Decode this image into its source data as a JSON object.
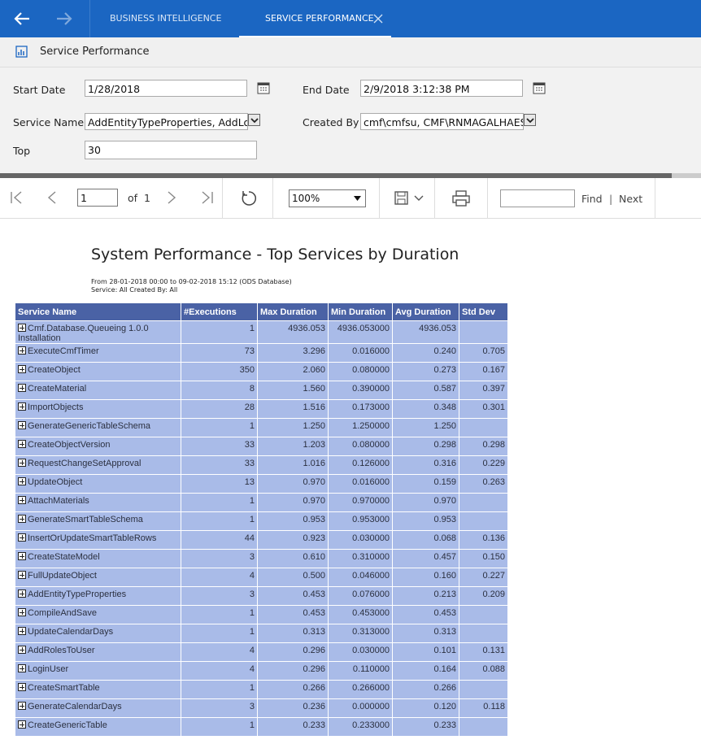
{
  "tabs": [
    "BUSINESS INTELLIGENCE",
    "SERVICE PERFORMANCE"
  ],
  "page_title": "Service Performance",
  "filters": {
    "start_date": {
      "label": "Start Date",
      "value": "1/28/2018"
    },
    "end_date": {
      "label": "End Date",
      "value": "2/9/2018 3:12:38 PM"
    },
    "service_name": {
      "label": "Service Name",
      "value": "AddEntityTypeProperties, AddLoo"
    },
    "created_by": {
      "label": "Created By",
      "value": "cmf\\cmfsu, CMF\\RNMAGALHAES,"
    },
    "top": {
      "label": "Top",
      "value": "30"
    }
  },
  "toolbar": {
    "page": "1",
    "of": "of",
    "total": "1",
    "zoom": "100%",
    "find": "Find",
    "separator": "|",
    "next": "Next"
  },
  "report": {
    "title": "System Performance - Top Services by Duration",
    "subtitle": [
      "From 28-01-2018 00:00 to 09-02-2018 15:12 (ODS Database)",
      "Service: All  Created By: All"
    ],
    "columns": [
      "Service Name",
      "#Executions",
      "Max Duration",
      "Min Duration",
      "Avg Duration",
      "Std Dev"
    ],
    "rows": [
      [
        "Cmf.Database.Queueing 1.0.0 Installation",
        "1",
        "4936.053",
        "4936.053000",
        "4936.053"
      ],
      [
        "ExecuteCmfTimer",
        "73",
        "3.296",
        "0.016000",
        "0.240",
        "0.705"
      ],
      [
        "CreateObject",
        "350",
        "2.060",
        "0.080000",
        "0.273",
        "0.167"
      ],
      [
        "CreateMaterial",
        "8",
        "1.560",
        "0.390000",
        "0.587",
        "0.397"
      ],
      [
        "ImportObjects",
        "28",
        "1.516",
        "0.173000",
        "0.348",
        "0.301"
      ],
      [
        "GenerateGenericTableSchema",
        "1",
        "1.250",
        "1.250000",
        "1.250"
      ],
      [
        "CreateObjectVersion",
        "33",
        "1.203",
        "0.080000",
        "0.298",
        "0.298"
      ],
      [
        "RequestChangeSetApproval",
        "33",
        "1.016",
        "0.126000",
        "0.316",
        "0.229"
      ],
      [
        "UpdateObject",
        "13",
        "0.970",
        "0.016000",
        "0.159",
        "0.263"
      ],
      [
        "AttachMaterials",
        "1",
        "0.970",
        "0.970000",
        "0.970"
      ],
      [
        "GenerateSmartTableSchema",
        "1",
        "0.953",
        "0.953000",
        "0.953"
      ],
      [
        "InsertOrUpdateSmartTableRows",
        "44",
        "0.923",
        "0.030000",
        "0.068",
        "0.136"
      ],
      [
        "CreateStateModel",
        "3",
        "0.610",
        "0.310000",
        "0.457",
        "0.150"
      ],
      [
        "FullUpdateObject",
        "4",
        "0.500",
        "0.046000",
        "0.160",
        "0.227"
      ],
      [
        "AddEntityTypeProperties",
        "3",
        "0.453",
        "0.076000",
        "0.213",
        "0.209"
      ],
      [
        "CompileAndSave",
        "1",
        "0.453",
        "0.453000",
        "0.453"
      ],
      [
        "UpdateCalendarDays",
        "1",
        "0.313",
        "0.313000",
        "0.313"
      ],
      [
        "AddRolesToUser",
        "4",
        "0.296",
        "0.030000",
        "0.101",
        "0.131"
      ],
      [
        "LoginUser",
        "4",
        "0.296",
        "0.110000",
        "0.164",
        "0.088"
      ],
      [
        "CreateSmartTable",
        "1",
        "0.266",
        "0.266000",
        "0.266"
      ],
      [
        "GenerateCalendarDays",
        "3",
        "0.236",
        "0.000000",
        "0.120",
        "0.118"
      ],
      [
        "CreateGenericTable",
        "1",
        "0.233",
        "0.233000",
        "0.233"
      ]
    ]
  }
}
